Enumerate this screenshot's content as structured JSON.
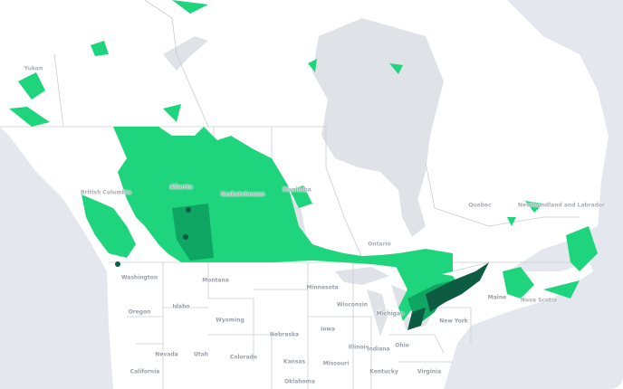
{
  "map": {
    "colors": {
      "ocean": "#e4e8ee",
      "land": "#ffffff",
      "water": "#dfe3e8",
      "border": "#c9cdd3",
      "coverage_low": "#1ed47c",
      "coverage_mid": "#0fa562",
      "coverage_high": "#0b5c40"
    },
    "regions_canada": [
      "Yukon",
      "British Columbia",
      "Alberta",
      "Saskatchewan",
      "Manitoba",
      "Ontario",
      "Quebec",
      "Newfoundland and Labrador",
      "Nova Scotia"
    ],
    "regions_us": [
      "Washington",
      "Oregon",
      "Idaho",
      "Montana",
      "Wyoming",
      "Nevada",
      "Utah",
      "Colorado",
      "California",
      "Minnesota",
      "Wisconsin",
      "Michigan",
      "Iowa",
      "Nebraska",
      "Kansas",
      "Missouri",
      "Illinois",
      "Indiana",
      "Ohio",
      "Kentucky",
      "Virginia",
      "New York",
      "Maine",
      "Oklahoma"
    ]
  }
}
